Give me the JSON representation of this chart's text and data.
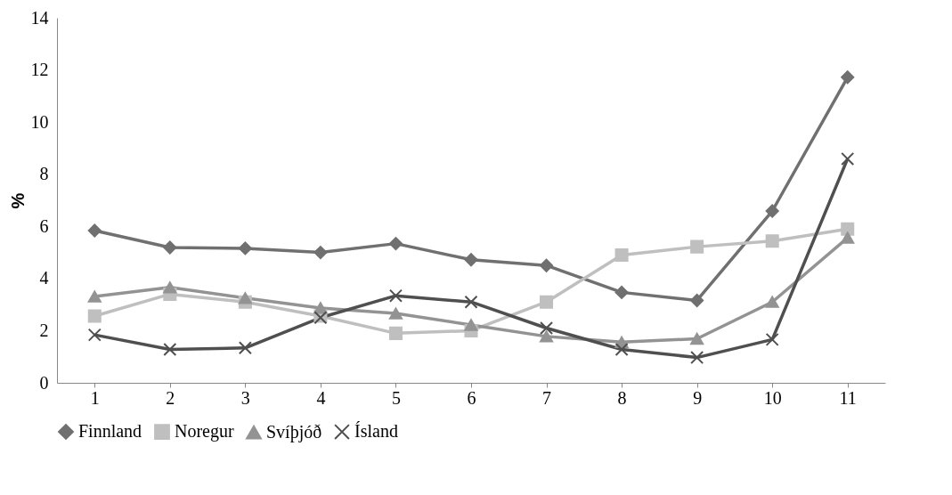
{
  "chart_data": {
    "type": "line",
    "ylabel": "%",
    "categories": [
      "1",
      "2",
      "3",
      "4",
      "5",
      "6",
      "7",
      "8",
      "9",
      "10",
      "11"
    ],
    "ylim": [
      0,
      14
    ],
    "yticks": [
      0,
      2,
      4,
      6,
      8,
      10,
      12,
      14
    ],
    "grid": false,
    "legend": "bottom",
    "line_style": "solid",
    "series": [
      {
        "name": "Finnland",
        "color": "#707070",
        "marker": "diamond",
        "values": [
          5.84,
          5.19,
          5.16,
          5.0,
          5.34,
          4.72,
          4.5,
          3.47,
          3.16,
          6.59,
          11.72
        ]
      },
      {
        "name": "Noregur",
        "color": "#bfbfbf",
        "marker": "square",
        "values": [
          2.56,
          3.4,
          3.1,
          2.56,
          1.9,
          2.0,
          3.1,
          4.9,
          5.22,
          5.44,
          5.9
        ]
      },
      {
        "name": "Svíþjóð",
        "color": "#939393",
        "marker": "triangle",
        "values": [
          3.31,
          3.66,
          3.25,
          2.87,
          2.66,
          2.22,
          1.78,
          1.56,
          1.69,
          3.1,
          5.56
        ]
      },
      {
        "name": "Ísland",
        "color": "#4f4f4f",
        "marker": "cross",
        "values": [
          1.84,
          1.28,
          1.34,
          2.5,
          3.34,
          3.1,
          2.1,
          1.28,
          0.97,
          1.66,
          8.59
        ]
      }
    ]
  }
}
